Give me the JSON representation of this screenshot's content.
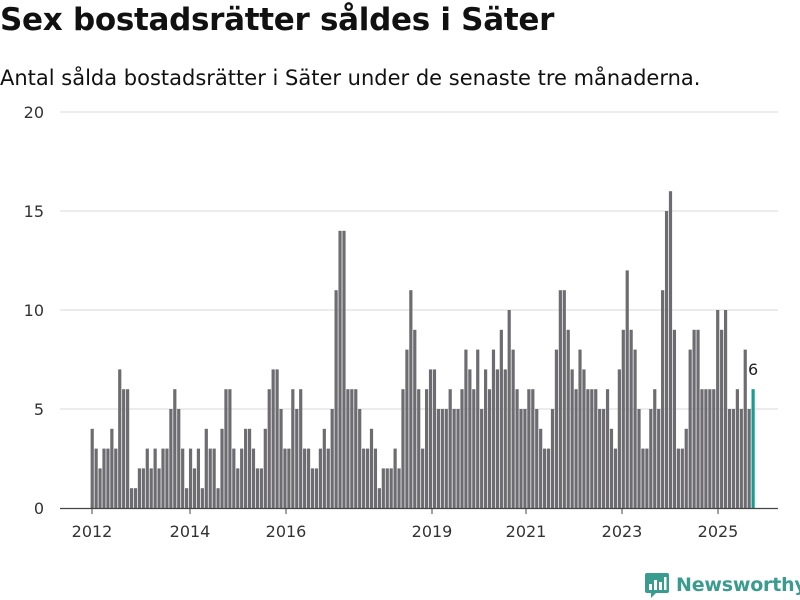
{
  "header": {
    "title": "Sex bostadsrätter såldes i Säter",
    "subtitle": "Antal sålda bostadsrätter i Säter under de senaste tre månaderna."
  },
  "brand": {
    "name": "Newsworthy",
    "icon": "newsworthy-logo-icon",
    "color": "#3a9b8f"
  },
  "colors": {
    "bar": "#6d6c70",
    "highlight": "#1a9b8f",
    "grid": "#d9d9d9"
  },
  "chart_data": {
    "type": "bar",
    "title": "Sex bostadsrätter såldes i Säter",
    "subtitle": "Antal sålda bostadsrätter i Säter under de senaste tre månaderna.",
    "ylim": [
      0,
      20
    ],
    "yticks": [
      0,
      5,
      10,
      15,
      20
    ],
    "xticks": [
      "2012",
      "2014",
      "2016",
      "2019",
      "2021",
      "2023",
      "2025"
    ],
    "grid": "horizontal",
    "highlighted_label": "6",
    "values": [
      4,
      3,
      2,
      3,
      3,
      4,
      3,
      7,
      6,
      6,
      1,
      1,
      2,
      2,
      3,
      2,
      3,
      2,
      3,
      3,
      5,
      6,
      5,
      3,
      1,
      3,
      2,
      3,
      1,
      4,
      3,
      3,
      1,
      4,
      6,
      6,
      3,
      2,
      3,
      4,
      4,
      3,
      2,
      2,
      4,
      6,
      7,
      7,
      5,
      3,
      3,
      6,
      5,
      6,
      3,
      3,
      2,
      2,
      3,
      4,
      3,
      5,
      11,
      14,
      14,
      6,
      6,
      6,
      5,
      3,
      3,
      4,
      3,
      1,
      2,
      2,
      2,
      3,
      2,
      6,
      8,
      11,
      9,
      6,
      3,
      6,
      7,
      7,
      5,
      5,
      5,
      6,
      5,
      5,
      6,
      8,
      7,
      6,
      8,
      5,
      7,
      6,
      8,
      7,
      9,
      7,
      10,
      8,
      6,
      5,
      5,
      6,
      6,
      5,
      4,
      3,
      3,
      5,
      8,
      11,
      11,
      9,
      7,
      6,
      8,
      7,
      6,
      6,
      6,
      5,
      5,
      6,
      4,
      3,
      7,
      9,
      12,
      9,
      8,
      5,
      3,
      3,
      5,
      6,
      5,
      11,
      15,
      16,
      9,
      3,
      3,
      4,
      8,
      9,
      9,
      6,
      6,
      6,
      6,
      10,
      9,
      10,
      5,
      5,
      6,
      5,
      8,
      5,
      6
    ]
  }
}
